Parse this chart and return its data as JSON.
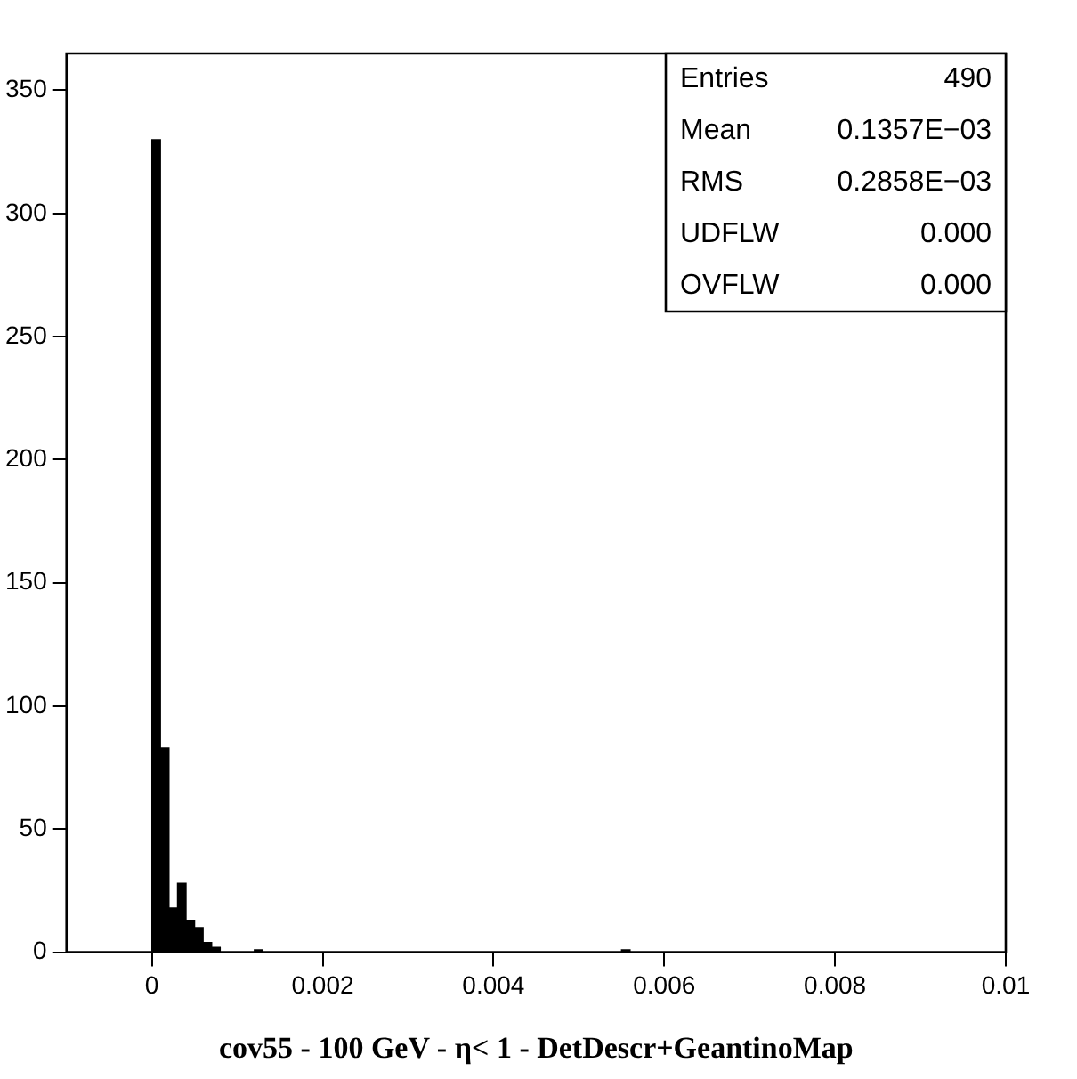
{
  "chart_data": {
    "type": "histogram",
    "xlabel": "cov55 - 100 GeV - η< 1 - DetDescr+GeantinoMap",
    "bins": [
      -0.001,
      -0.0009,
      -0.0008,
      -0.0007,
      -0.0006,
      -0.0005,
      -0.0004,
      -0.0003,
      -0.0002,
      -0.0001,
      0,
      0.0001,
      0.0002,
      0.0003,
      0.0004,
      0.0005,
      0.0006,
      0.0007,
      0.0008,
      0.0009,
      0.001,
      0.0011,
      0.0012,
      0.0013,
      0.0014,
      0.0015,
      0.0016,
      0.0017,
      0.0018,
      0.0019,
      0.002,
      0.0021,
      0.0022,
      0.0023,
      0.0024,
      0.0025,
      0.0026,
      0.0027,
      0.0028,
      0.0029,
      0.003,
      0.0031,
      0.0032,
      0.0033,
      0.0034,
      0.0035,
      0.0036,
      0.0037,
      0.0038,
      0.0039,
      0.004,
      0.0041,
      0.0042,
      0.0043,
      0.0044,
      0.0045,
      0.0046,
      0.0047,
      0.0048,
      0.0049,
      0.005,
      0.0051,
      0.0052,
      0.0053,
      0.0054,
      0.0055,
      0.0056,
      0.0057,
      0.0058,
      0.0059,
      0.006,
      0.0061,
      0.0062,
      0.0063,
      0.0064,
      0.0065,
      0.0066,
      0.0067,
      0.0068,
      0.0069,
      0.007,
      0.0071,
      0.0072,
      0.0073,
      0.0074,
      0.0075,
      0.0076,
      0.0077,
      0.0078,
      0.0079,
      0.008,
      0.0081,
      0.0082,
      0.0083,
      0.0084,
      0.0085,
      0.0086,
      0.0087,
      0.0088,
      0.0089,
      0.009,
      0.0091,
      0.0092,
      0.0093,
      0.0094,
      0.0095,
      0.0096,
      0.0097,
      0.0098,
      0.0099,
      0.01
    ],
    "values": [
      0,
      0,
      0,
      0,
      0,
      0,
      0,
      0,
      0,
      0,
      330,
      83,
      18,
      28,
      13,
      10,
      4,
      2,
      0,
      0,
      0,
      0,
      1,
      0,
      0,
      0,
      0,
      0,
      0,
      0,
      0,
      0,
      0,
      0,
      0,
      0,
      0,
      0,
      0,
      0,
      0,
      0,
      0,
      0,
      0,
      0,
      0,
      0,
      0,
      0,
      0,
      0,
      0,
      0,
      0,
      0,
      0,
      0,
      0,
      0,
      0,
      0,
      0,
      0,
      0,
      1,
      0,
      0,
      0,
      0,
      0,
      0,
      0,
      0,
      0,
      0,
      0,
      0,
      0,
      0,
      0,
      0,
      0,
      0,
      0,
      0,
      0,
      0,
      0,
      0,
      0,
      0,
      0,
      0,
      0,
      0,
      0,
      0,
      0,
      0,
      0,
      0,
      0,
      0,
      0,
      0,
      0,
      0,
      0,
      0
    ],
    "color": "#000000",
    "xlim": [
      -0.001,
      0.01
    ],
    "xticks": [
      0,
      0.002,
      0.004,
      0.006,
      0.008,
      0.01
    ],
    "ylim": [
      0,
      365
    ],
    "yticks": [
      0,
      50,
      100,
      150,
      200,
      250,
      300,
      350
    ],
    "grid": false,
    "legend": false,
    "annotations": [
      "Entries",
      "490",
      "Mean",
      "0.1357E−03",
      "RMS",
      "0.2858E−03",
      "UDFLW",
      "0.000",
      "OVFLW",
      "0.000"
    ]
  }
}
